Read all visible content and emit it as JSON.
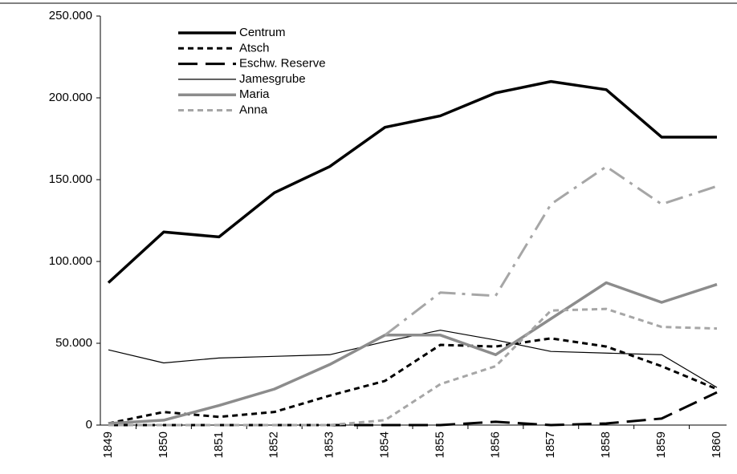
{
  "chart_data": {
    "type": "line",
    "categories": [
      "1849",
      "1850",
      "1851",
      "1852",
      "1853",
      "1854",
      "1855",
      "1856",
      "1857",
      "1858",
      "1859",
      "1860"
    ],
    "ylim": [
      0,
      250000
    ],
    "yticks": [
      0,
      {
        "value": 50000,
        "label": "50.000"
      },
      {
        "value": 100000,
        "label": "100.000"
      },
      {
        "value": 150000,
        "label": "150.000"
      },
      {
        "value": 200000,
        "label": "200.000"
      },
      {
        "value": 250000,
        "label": "250.000"
      }
    ],
    "legend": "top-left",
    "series": [
      {
        "name": "Centrum",
        "color": "#000000",
        "width": 3.5,
        "dash": "none",
        "values": [
          87000,
          118000,
          115000,
          142000,
          158000,
          182000,
          189000,
          203000,
          210000,
          205000,
          176000,
          176000
        ]
      },
      {
        "name": "Atsch",
        "color": "#000000",
        "width": 3,
        "dash": "7 5",
        "values": [
          1000,
          8000,
          5000,
          8000,
          18000,
          27000,
          49000,
          48000,
          53000,
          48000,
          36000,
          22000
        ]
      },
      {
        "name": "Eschw. Reserve",
        "color": "#000000",
        "width": 3,
        "dash": "24 10",
        "values": [
          0,
          0,
          0,
          0,
          0,
          0,
          0,
          2000,
          0,
          1000,
          4000,
          20000
        ]
      },
      {
        "name": "Jamesgrube",
        "color": "#000000",
        "width": 1.2,
        "dash": "none",
        "values": [
          46000,
          38000,
          41000,
          42000,
          43000,
          51000,
          58000,
          52000,
          45000,
          44000,
          43000,
          23000
        ]
      },
      {
        "name": "Maria",
        "color": "#8c8c8c",
        "width": 3.5,
        "dash": "none",
        "values": [
          1000,
          3000,
          12000,
          22000,
          37000,
          55000,
          55000,
          43000,
          65000,
          87000,
          75000,
          86000
        ]
      },
      {
        "name": "Anna",
        "color": "#a6a6a6",
        "width": 3,
        "dash": "7 5",
        "values": [
          0,
          0,
          0,
          0,
          0,
          3000,
          25000,
          36000,
          70000,
          71000,
          60000,
          59000
        ]
      },
      {
        "color": "#a6a6a6",
        "width": 3,
        "dash": "22 8 4 8",
        "values": [
          null,
          null,
          null,
          null,
          null,
          55000,
          81000,
          79000,
          135000,
          158000,
          135000,
          146000
        ]
      }
    ]
  }
}
